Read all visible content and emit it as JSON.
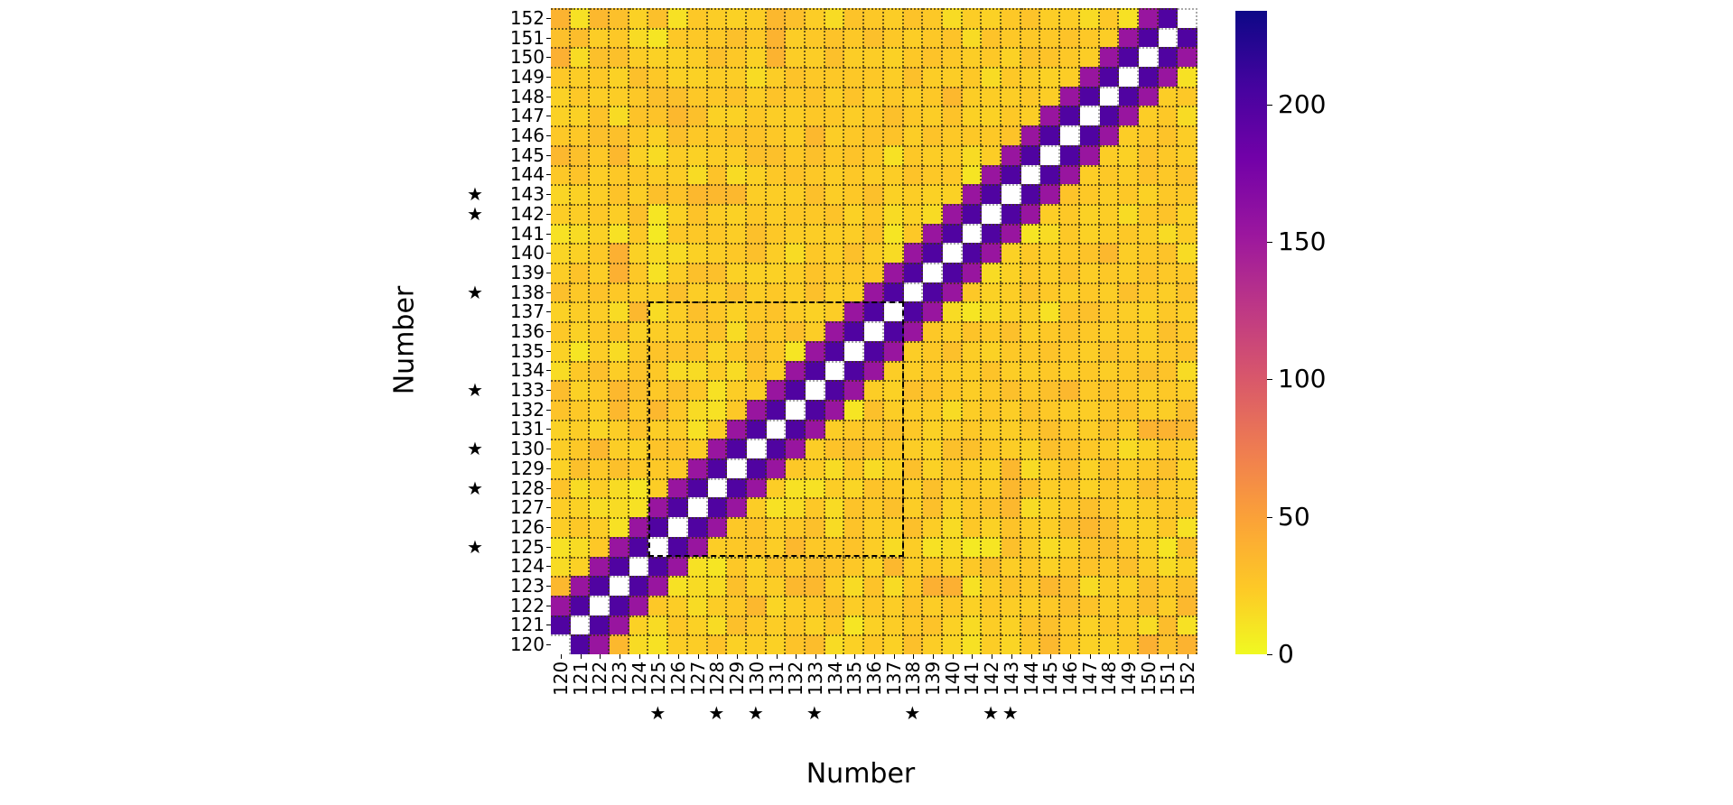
{
  "chart_data": {
    "type": "heatmap",
    "title": "",
    "xlabel": "Number",
    "ylabel": "Number",
    "x_ticks": [
      120,
      121,
      122,
      123,
      124,
      125,
      126,
      127,
      128,
      129,
      130,
      131,
      132,
      133,
      134,
      135,
      136,
      137,
      138,
      139,
      140,
      141,
      142,
      143,
      144,
      145,
      146,
      147,
      148,
      149,
      150,
      151,
      152
    ],
    "y_ticks": [
      120,
      121,
      122,
      123,
      124,
      125,
      126,
      127,
      128,
      129,
      130,
      131,
      132,
      133,
      134,
      135,
      136,
      137,
      138,
      139,
      140,
      141,
      142,
      143,
      144,
      145,
      146,
      147,
      148,
      149,
      150,
      151,
      152
    ],
    "starred": [
      125,
      128,
      130,
      133,
      138,
      142,
      143
    ],
    "star_glyph": "★",
    "highlight_box": {
      "x_from": 125,
      "x_to": 137,
      "y_from": 125,
      "y_to": 137,
      "style": "dashed"
    },
    "colorbar": {
      "cmap": "plasma_r",
      "min": 0,
      "max": 234,
      "ticks": [
        0,
        50,
        100,
        150,
        200
      ]
    },
    "diagonal": "masked (white)",
    "band_values": {
      "offset_1": 200,
      "offset_2": 155
    },
    "grid": "dotted",
    "values_note": "symmetric matrix; diagonal null; |i-j|=1 ≈200; |i-j|=2 ≈155; others 5–45",
    "offdiag_seed_rows": [
      [
        null,
        200,
        155,
        35,
        15,
        12,
        22,
        22,
        28,
        20,
        22,
        20,
        28,
        32,
        15,
        20,
        25,
        20,
        30,
        22,
        18,
        12,
        22,
        18,
        25,
        35,
        25,
        20,
        20,
        25,
        40,
        30,
        38
      ],
      [
        200,
        null,
        200,
        155,
        20,
        15,
        25,
        20,
        15,
        30,
        25,
        22,
        25,
        20,
        25,
        10,
        20,
        22,
        25,
        28,
        20,
        15,
        22,
        20,
        28,
        30,
        25,
        20,
        25,
        22,
        15,
        32,
        12
      ],
      [
        155,
        200,
        null,
        200,
        155,
        25,
        22,
        15,
        22,
        25,
        35,
        18,
        22,
        25,
        30,
        22,
        25,
        22,
        28,
        22,
        25,
        20,
        25,
        22,
        22,
        25,
        30,
        28,
        22,
        25,
        30,
        22,
        35
      ],
      [
        35,
        155,
        200,
        null,
        200,
        155,
        12,
        15,
        15,
        30,
        22,
        22,
        35,
        35,
        22,
        15,
        28,
        15,
        25,
        40,
        40,
        12,
        22,
        28,
        25,
        35,
        30,
        15,
        22,
        20,
        30,
        25,
        30
      ],
      [
        15,
        20,
        155,
        200,
        null,
        200,
        155,
        12,
        10,
        25,
        20,
        28,
        25,
        30,
        28,
        25,
        20,
        35,
        22,
        25,
        20,
        25,
        30,
        22,
        25,
        20,
        25,
        28,
        25,
        30,
        22,
        15,
        20
      ],
      [
        12,
        15,
        25,
        155,
        200,
        null,
        200,
        155,
        22,
        25,
        28,
        22,
        35,
        25,
        25,
        28,
        22,
        15,
        22,
        12,
        15,
        8,
        10,
        30,
        22,
        15,
        20,
        28,
        30,
        25,
        20,
        10,
        30
      ],
      [
        22,
        25,
        22,
        12,
        155,
        200,
        null,
        200,
        155,
        25,
        28,
        22,
        25,
        30,
        15,
        28,
        22,
        22,
        30,
        22,
        15,
        25,
        20,
        28,
        22,
        22,
        30,
        35,
        30,
        20,
        20,
        25,
        12
      ],
      [
        22,
        20,
        15,
        15,
        12,
        155,
        200,
        null,
        200,
        155,
        22,
        12,
        15,
        25,
        15,
        28,
        25,
        30,
        22,
        30,
        20,
        25,
        28,
        35,
        15,
        20,
        25,
        30,
        25,
        20,
        22,
        25,
        25
      ],
      [
        28,
        15,
        22,
        15,
        10,
        22,
        155,
        200,
        null,
        200,
        155,
        22,
        12,
        12,
        22,
        18,
        28,
        25,
        22,
        30,
        22,
        25,
        22,
        35,
        28,
        22,
        25,
        20,
        25,
        22,
        30,
        25,
        22
      ],
      [
        20,
        30,
        25,
        30,
        25,
        25,
        25,
        155,
        200,
        null,
        200,
        155,
        25,
        22,
        15,
        25,
        15,
        20,
        30,
        20,
        25,
        22,
        20,
        35,
        15,
        22,
        28,
        20,
        28,
        22,
        25,
        30,
        20
      ],
      [
        22,
        25,
        35,
        22,
        20,
        28,
        28,
        22,
        155,
        200,
        null,
        200,
        155,
        22,
        28,
        30,
        28,
        25,
        22,
        20,
        30,
        30,
        25,
        22,
        20,
        30,
        28,
        25,
        22,
        15,
        20,
        25,
        22
      ],
      [
        20,
        22,
        18,
        22,
        28,
        22,
        22,
        12,
        22,
        155,
        200,
        null,
        200,
        155,
        22,
        25,
        25,
        28,
        25,
        20,
        22,
        25,
        22,
        22,
        25,
        30,
        25,
        22,
        28,
        22,
        38,
        38,
        35
      ],
      [
        28,
        25,
        22,
        35,
        25,
        35,
        25,
        15,
        12,
        25,
        155,
        200,
        null,
        200,
        155,
        10,
        30,
        22,
        22,
        22,
        15,
        22,
        25,
        22,
        28,
        25,
        22,
        22,
        25,
        28,
        22,
        22,
        30
      ],
      [
        32,
        20,
        25,
        35,
        30,
        25,
        30,
        25,
        12,
        22,
        22,
        155,
        200,
        null,
        200,
        155,
        22,
        20,
        30,
        28,
        25,
        22,
        25,
        30,
        25,
        30,
        35,
        25,
        28,
        25,
        22,
        25,
        22
      ],
      [
        15,
        25,
        30,
        22,
        28,
        25,
        15,
        15,
        22,
        15,
        28,
        22,
        155,
        200,
        null,
        200,
        155,
        22,
        22,
        25,
        22,
        22,
        28,
        22,
        22,
        25,
        22,
        25,
        22,
        25,
        30,
        28,
        15
      ],
      [
        20,
        10,
        22,
        15,
        25,
        28,
        28,
        28,
        18,
        25,
        30,
        25,
        10,
        155,
        200,
        null,
        200,
        155,
        22,
        25,
        30,
        22,
        20,
        25,
        25,
        28,
        25,
        22,
        28,
        25,
        22,
        25,
        28
      ],
      [
        25,
        20,
        25,
        28,
        20,
        22,
        22,
        25,
        28,
        15,
        28,
        25,
        30,
        22,
        155,
        200,
        null,
        200,
        155,
        25,
        22,
        28,
        25,
        30,
        22,
        25,
        28,
        25,
        22,
        25,
        22,
        30,
        25
      ],
      [
        20,
        22,
        22,
        15,
        35,
        15,
        22,
        30,
        25,
        20,
        25,
        28,
        22,
        20,
        22,
        155,
        200,
        null,
        200,
        155,
        15,
        10,
        15,
        20,
        22,
        12,
        28,
        30,
        25,
        22,
        20,
        25,
        22
      ],
      [
        30,
        25,
        28,
        25,
        22,
        22,
        30,
        22,
        22,
        30,
        22,
        25,
        22,
        30,
        22,
        22,
        155,
        200,
        null,
        200,
        155,
        25,
        20,
        22,
        28,
        25,
        22,
        25,
        22,
        30,
        25,
        22,
        28
      ],
      [
        22,
        28,
        22,
        40,
        25,
        12,
        22,
        30,
        30,
        20,
        20,
        20,
        22,
        28,
        25,
        25,
        25,
        155,
        200,
        null,
        200,
        155,
        15,
        20,
        25,
        22,
        28,
        22,
        25,
        22,
        28,
        25,
        25
      ],
      [
        18,
        20,
        25,
        40,
        20,
        15,
        15,
        20,
        22,
        25,
        30,
        22,
        15,
        25,
        22,
        30,
        22,
        15,
        155,
        200,
        null,
        200,
        155,
        20,
        25,
        22,
        25,
        28,
        35,
        22,
        25,
        28,
        15
      ],
      [
        12,
        15,
        20,
        12,
        25,
        8,
        25,
        25,
        25,
        22,
        30,
        25,
        22,
        22,
        22,
        22,
        28,
        10,
        25,
        155,
        200,
        null,
        200,
        155,
        10,
        15,
        25,
        20,
        22,
        25,
        22,
        15,
        22
      ],
      [
        22,
        22,
        25,
        22,
        30,
        10,
        20,
        28,
        22,
        20,
        25,
        22,
        25,
        25,
        28,
        20,
        25,
        15,
        20,
        15,
        155,
        200,
        null,
        200,
        155,
        22,
        25,
        20,
        22,
        15,
        25,
        28,
        20
      ],
      [
        18,
        20,
        22,
        28,
        22,
        30,
        28,
        35,
        35,
        35,
        22,
        22,
        22,
        30,
        22,
        25,
        30,
        20,
        22,
        20,
        20,
        155,
        200,
        null,
        200,
        155,
        28,
        25,
        22,
        25,
        20,
        25,
        25
      ],
      [
        25,
        28,
        22,
        25,
        25,
        22,
        22,
        15,
        28,
        15,
        20,
        25,
        28,
        25,
        22,
        25,
        22,
        22,
        28,
        25,
        25,
        10,
        155,
        200,
        null,
        200,
        155,
        22,
        25,
        22,
        28,
        25,
        28
      ],
      [
        35,
        30,
        25,
        35,
        20,
        15,
        22,
        20,
        22,
        22,
        30,
        30,
        25,
        30,
        25,
        28,
        25,
        12,
        25,
        22,
        22,
        15,
        22,
        155,
        200,
        null,
        200,
        155,
        22,
        20,
        28,
        25,
        22
      ],
      [
        25,
        25,
        30,
        30,
        25,
        20,
        30,
        25,
        25,
        28,
        28,
        25,
        22,
        35,
        22,
        25,
        28,
        28,
        22,
        28,
        25,
        25,
        25,
        28,
        155,
        200,
        null,
        200,
        155,
        22,
        25,
        28,
        22
      ],
      [
        20,
        20,
        28,
        15,
        28,
        28,
        35,
        30,
        20,
        20,
        25,
        22,
        22,
        25,
        25,
        22,
        25,
        30,
        25,
        22,
        28,
        20,
        20,
        25,
        22,
        155,
        200,
        null,
        200,
        155,
        22,
        25,
        15
      ],
      [
        20,
        25,
        22,
        22,
        25,
        30,
        30,
        25,
        25,
        28,
        22,
        28,
        25,
        28,
        22,
        28,
        22,
        25,
        22,
        25,
        35,
        22,
        22,
        22,
        25,
        22,
        155,
        200,
        null,
        200,
        155,
        22,
        25
      ],
      [
        25,
        22,
        25,
        20,
        30,
        25,
        20,
        20,
        22,
        22,
        15,
        22,
        28,
        25,
        25,
        25,
        25,
        22,
        30,
        22,
        22,
        25,
        15,
        25,
        22,
        20,
        22,
        155,
        200,
        null,
        200,
        155,
        12
      ],
      [
        40,
        15,
        30,
        30,
        22,
        20,
        20,
        22,
        30,
        25,
        20,
        38,
        22,
        22,
        30,
        22,
        22,
        20,
        25,
        28,
        25,
        22,
        25,
        20,
        28,
        28,
        25,
        22,
        155,
        200,
        null,
        200,
        155
      ],
      [
        30,
        32,
        22,
        25,
        15,
        10,
        25,
        25,
        25,
        30,
        25,
        38,
        22,
        25,
        28,
        25,
        30,
        25,
        22,
        25,
        28,
        15,
        28,
        25,
        25,
        25,
        28,
        25,
        22,
        155,
        200,
        null,
        200
      ],
      [
        38,
        12,
        35,
        30,
        20,
        30,
        12,
        25,
        22,
        20,
        22,
        35,
        30,
        22,
        15,
        28,
        25,
        22,
        28,
        25,
        15,
        22,
        20,
        25,
        28,
        22,
        22,
        15,
        25,
        12,
        155,
        200,
        null
      ]
    ]
  },
  "axes": {
    "xlabel": "Number",
    "ylabel": "Number",
    "colorbar_ticks": [
      "0",
      "50",
      "100",
      "150",
      "200"
    ]
  }
}
